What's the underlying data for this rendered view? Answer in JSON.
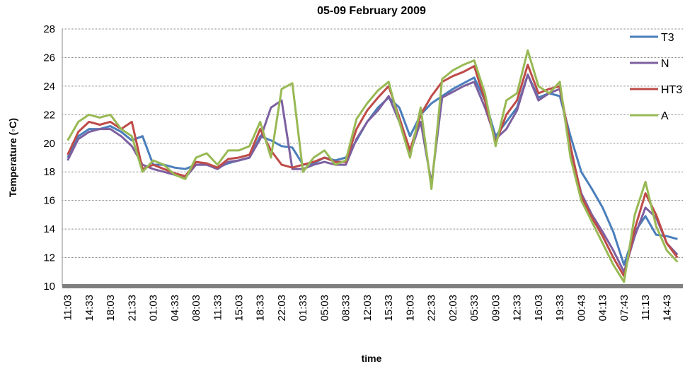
{
  "chart_data": {
    "type": "line",
    "title": "05-09 February 2009",
    "x_label": "time",
    "y_label": "Temperature (◦C)",
    "categories": [
      "11:03",
      null,
      "14:33",
      null,
      "18:03",
      null,
      "21:33",
      null,
      "01:03",
      null,
      "04:33",
      null,
      "08:03",
      null,
      "11:33",
      null,
      "15:03",
      null,
      "18:33",
      null,
      "22:03",
      null,
      "01:33",
      null,
      "05:03",
      null,
      "08:33",
      null,
      "12:03",
      null,
      "15:33",
      null,
      "19:03",
      null,
      "22:33",
      null,
      "02:03",
      null,
      "05:33",
      null,
      "09:03",
      null,
      "12:33",
      null,
      "16:03",
      null,
      "19:33",
      null,
      "00:43",
      null,
      "04:13",
      null,
      "07:43",
      null,
      "11:13",
      null,
      "14:43",
      null
    ],
    "series": [
      {
        "name": "T3",
        "color": "#4a7ebb",
        "values": [
          19,
          20.5,
          21,
          21,
          21.2,
          20.8,
          20.2,
          20.5,
          18.5,
          18.5,
          18.3,
          18.2,
          18.5,
          18.5,
          18.3,
          18.6,
          18.8,
          19,
          20.5,
          20.2,
          19.8,
          19.7,
          18.5,
          18.6,
          19,
          18.8,
          19,
          20.2,
          21.5,
          22.5,
          23.2,
          22.5,
          20.5,
          22,
          22.8,
          23.3,
          23.8,
          24.2,
          24.6,
          23,
          20.5,
          21.5,
          22.5,
          24.8,
          23.2,
          23.5,
          23.3,
          20.5,
          18,
          16.8,
          15.5,
          13.8,
          11.5,
          13.8,
          14.9,
          13.6,
          13.5,
          13.3
        ]
      },
      {
        "name": "N",
        "color": "#7d60a0",
        "values": [
          18.8,
          20.3,
          20.8,
          21,
          21,
          20.5,
          19.8,
          18.5,
          18.2,
          18,
          17.8,
          17.6,
          18.5,
          18.5,
          18.2,
          18.7,
          18.8,
          19,
          20.3,
          22.5,
          23,
          18.2,
          18.2,
          18.5,
          18.7,
          18.5,
          18.5,
          20.3,
          21.5,
          22.3,
          23.3,
          21.5,
          19.3,
          21.5,
          17.2,
          23.2,
          23.6,
          24,
          24.3,
          22.5,
          20.3,
          21,
          22.3,
          24.8,
          23,
          23.5,
          23.8,
          19.5,
          16.5,
          15,
          13.8,
          12.5,
          11,
          13.5,
          15.5,
          14.8,
          13,
          12.2
        ]
      },
      {
        "name": "HT3",
        "color": "#be4b48",
        "values": [
          19.2,
          20.8,
          21.5,
          21.3,
          21.5,
          21,
          21.5,
          18.2,
          18.5,
          18.2,
          17.9,
          17.7,
          18.7,
          18.6,
          18.3,
          18.9,
          19,
          19.2,
          21,
          19.5,
          18.5,
          18.3,
          18.5,
          18.7,
          19,
          18.7,
          18.7,
          21,
          22.3,
          23.2,
          24,
          21.8,
          19.5,
          22,
          23.3,
          24.3,
          24.7,
          25,
          25.4,
          23,
          20,
          22,
          23,
          25.5,
          23.5,
          23.8,
          24,
          19.8,
          16.3,
          14.8,
          13.5,
          12,
          10.7,
          14,
          16.5,
          15,
          13,
          12
        ]
      },
      {
        "name": "A",
        "color": "#98b954",
        "values": [
          20.2,
          21.5,
          22,
          21.8,
          22,
          21,
          20.5,
          18,
          18.8,
          18.5,
          17.8,
          17.5,
          19,
          19.3,
          18.5,
          19.5,
          19.5,
          19.8,
          21.5,
          19,
          23.8,
          24.2,
          18,
          19,
          19.5,
          18.5,
          18.8,
          21.7,
          22.8,
          23.7,
          24.3,
          21.5,
          19,
          22.5,
          16.8,
          24.5,
          25.1,
          25.5,
          25.8,
          23.5,
          19.8,
          23,
          23.5,
          26.5,
          24,
          23.5,
          24.3,
          19,
          16,
          14.5,
          13,
          11.5,
          10.3,
          15,
          17.3,
          14.2,
          12.5,
          11.7
        ]
      }
    ],
    "ylim": [
      10,
      28
    ],
    "yticks": [
      10,
      12,
      14,
      16,
      18,
      20,
      22,
      24,
      26,
      28
    ],
    "grid": true,
    "legend": "right"
  }
}
